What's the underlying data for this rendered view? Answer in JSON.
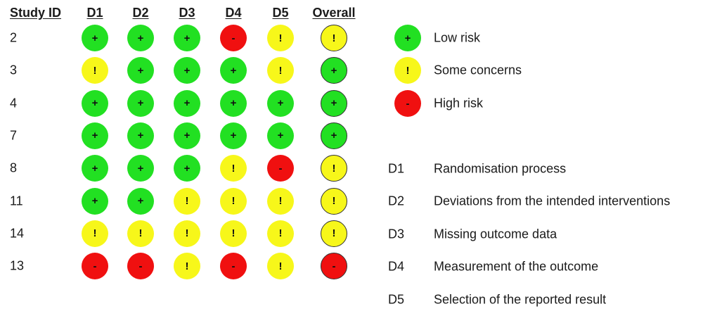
{
  "headers": {
    "study_id": "Study ID",
    "domains": [
      "D1",
      "D2",
      "D3",
      "D4",
      "D5"
    ],
    "overall": "Overall"
  },
  "judgement_styles": {
    "low": {
      "symbol": "+",
      "color": "#22e022",
      "label": "Low risk"
    },
    "some": {
      "symbol": "!",
      "color": "#f7f71a",
      "label": "Some concerns"
    },
    "high": {
      "symbol": "-",
      "color": "#f01010",
      "label": "High risk"
    }
  },
  "studies": [
    {
      "id": "2",
      "domains": [
        "low",
        "low",
        "low",
        "high",
        "some"
      ],
      "overall": "some"
    },
    {
      "id": "3",
      "domains": [
        "some",
        "low",
        "low",
        "low",
        "some"
      ],
      "overall": "low"
    },
    {
      "id": "4",
      "domains": [
        "low",
        "low",
        "low",
        "low",
        "low"
      ],
      "overall": "low"
    },
    {
      "id": "7",
      "domains": [
        "low",
        "low",
        "low",
        "low",
        "low"
      ],
      "overall": "low"
    },
    {
      "id": "8",
      "domains": [
        "low",
        "low",
        "low",
        "some",
        "high"
      ],
      "overall": "some"
    },
    {
      "id": "11",
      "domains": [
        "low",
        "low",
        "some",
        "some",
        "some"
      ],
      "overall": "some"
    },
    {
      "id": "14",
      "domains": [
        "some",
        "some",
        "some",
        "some",
        "some"
      ],
      "overall": "some"
    },
    {
      "id": "13",
      "domains": [
        "high",
        "high",
        "some",
        "high",
        "some"
      ],
      "overall": "high"
    }
  ],
  "legend": [
    {
      "key": "low",
      "label": "Low risk"
    },
    {
      "key": "some",
      "label": "Some concerns"
    },
    {
      "key": "high",
      "label": "High risk"
    }
  ],
  "domain_definitions": [
    {
      "code": "D1",
      "description": "Randomisation process"
    },
    {
      "code": "D2",
      "description": "Deviations from the intended interventions"
    },
    {
      "code": "D3",
      "description": "Missing outcome data"
    },
    {
      "code": "D4",
      "description": "Measurement of the outcome"
    },
    {
      "code": "D5",
      "description": "Selection of the reported result"
    }
  ]
}
